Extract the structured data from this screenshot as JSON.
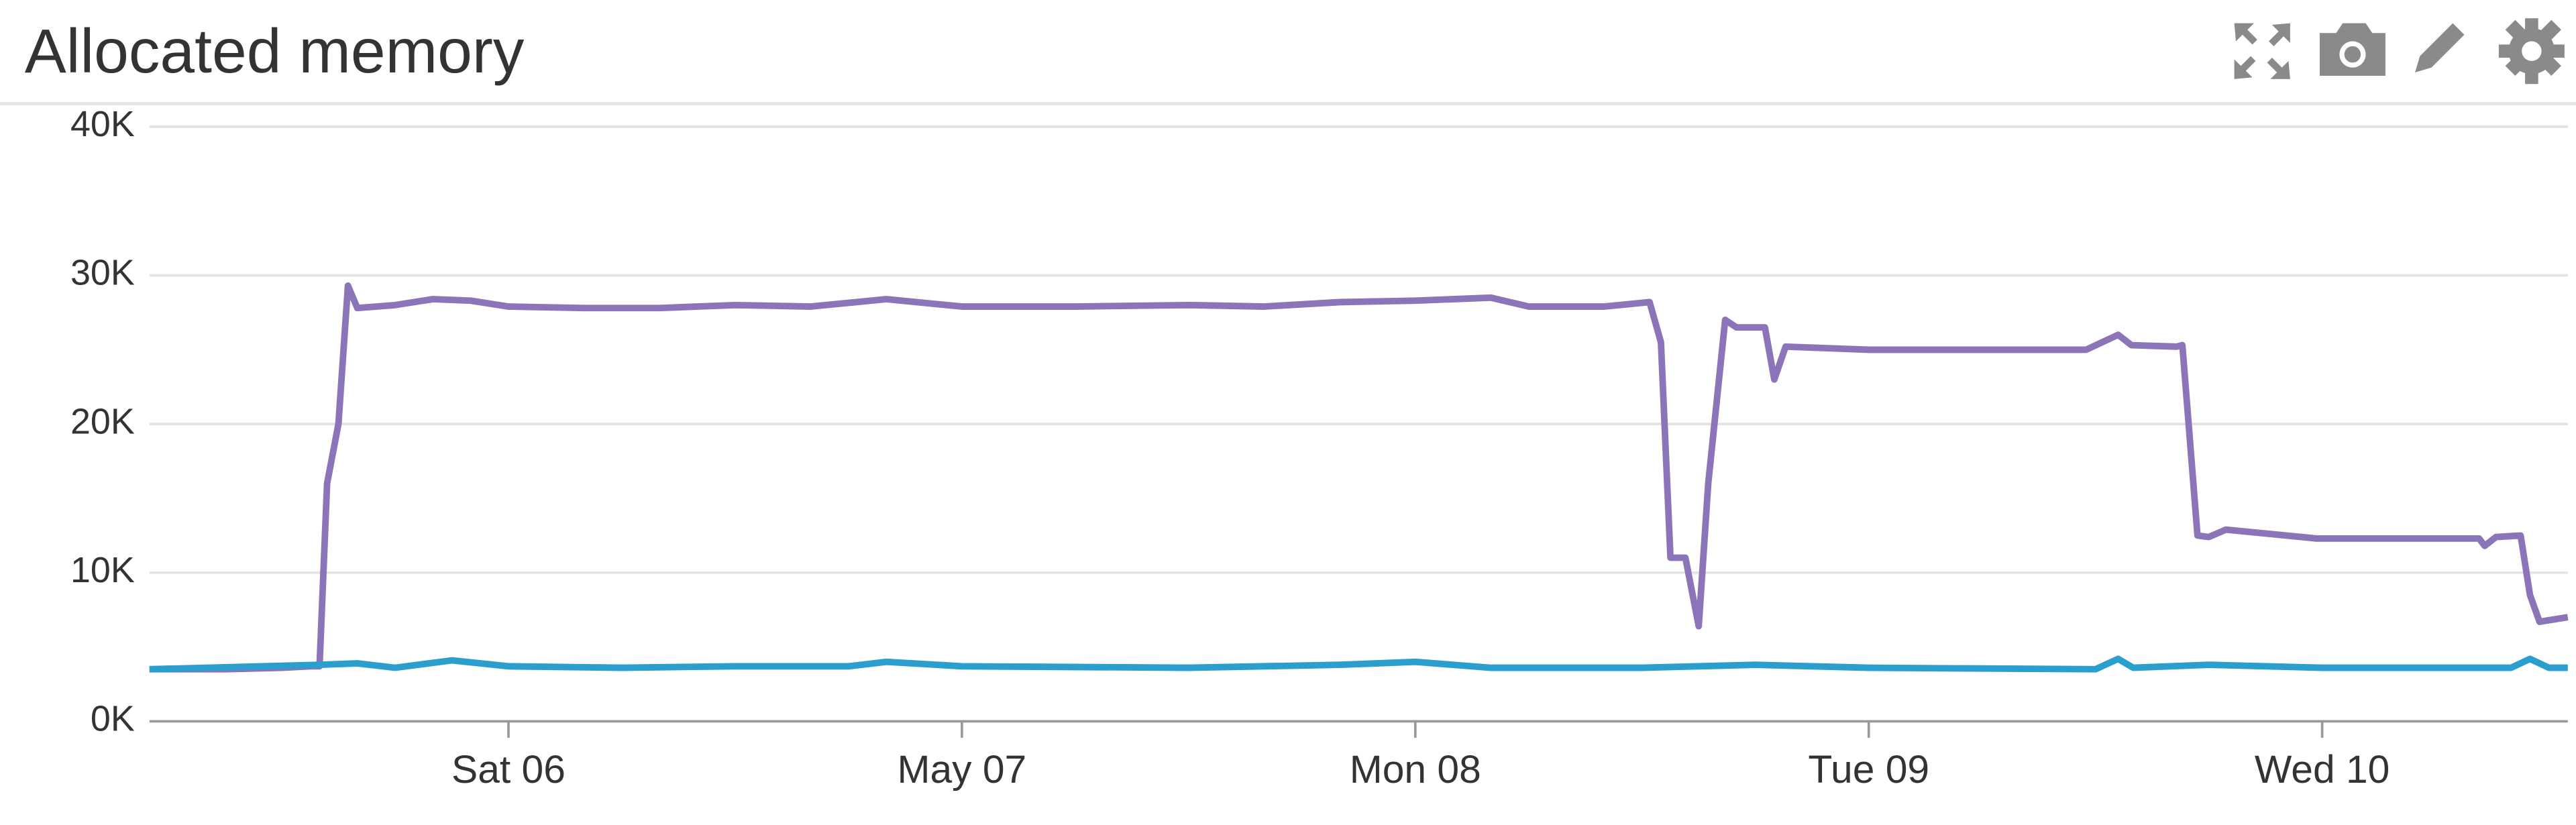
{
  "chart_data": {
    "type": "line",
    "title": "Allocated memory",
    "xlim": [
      -19,
      109
    ],
    "xticks": [
      {
        "value": 0,
        "label": "Sat 06"
      },
      {
        "value": 24,
        "label": "May 07"
      },
      {
        "value": 48,
        "label": "Mon 08"
      },
      {
        "value": 72,
        "label": "Tue 09"
      },
      {
        "value": 96,
        "label": "Wed 10"
      }
    ],
    "ylim": [
      0,
      40000
    ],
    "yticks": [
      {
        "value": 0,
        "label": "0K"
      },
      {
        "value": 10000,
        "label": "10K"
      },
      {
        "value": 20000,
        "label": "20K"
      },
      {
        "value": 30000,
        "label": "30K"
      },
      {
        "value": 40000,
        "label": "40K"
      }
    ],
    "grid": true,
    "series": [
      {
        "color": "#8c74b8",
        "x": [
          -19,
          -15,
          -12,
          -10.5,
          -10,
          -9.6,
          -9,
          -8.5,
          -8,
          -6,
          -4,
          -2,
          0,
          4,
          8,
          12,
          16,
          20,
          24,
          30,
          36,
          40,
          44,
          48,
          52,
          54,
          58,
          60.4,
          61,
          61.5,
          62.3,
          63,
          63.5,
          64.4,
          65,
          66.5,
          67,
          67.6,
          72,
          78,
          83.5,
          85.2,
          85.9,
          88.3,
          88.6,
          89.4,
          90,
          90.9,
          95.7,
          100,
          104.3,
          104.6,
          105.2,
          106.5,
          107,
          107.5,
          109
        ],
        "values": [
          3500,
          3500,
          3600,
          3700,
          3700,
          16000,
          20000,
          29300,
          27800,
          28000,
          28400,
          28300,
          27900,
          27800,
          27800,
          28000,
          27900,
          28400,
          27900,
          27900,
          28000,
          27900,
          28200,
          28300,
          28500,
          27900,
          27900,
          28200,
          25500,
          11000,
          11000,
          6400,
          16000,
          27000,
          26500,
          26500,
          23000,
          25200,
          25000,
          25000,
          25000,
          26000,
          25300,
          25200,
          25300,
          12500,
          12400,
          12900,
          12300,
          12300,
          12300,
          11800,
          12400,
          12500,
          8500,
          6700,
          7000
        ]
      },
      {
        "color": "#2a9fce",
        "x": [
          -19,
          -10,
          -8,
          -6,
          -3,
          0,
          6,
          12,
          18,
          20,
          24,
          36,
          44,
          48,
          52,
          60,
          66,
          72,
          84,
          85.2,
          86,
          90,
          96,
          106,
          107,
          108,
          109
        ],
        "values": [
          3500,
          3800,
          3900,
          3600,
          4100,
          3700,
          3600,
          3700,
          3700,
          4000,
          3700,
          3600,
          3800,
          4000,
          3600,
          3600,
          3800,
          3600,
          3500,
          4200,
          3600,
          3800,
          3600,
          3600,
          4200,
          3600,
          3600
        ]
      }
    ]
  }
}
